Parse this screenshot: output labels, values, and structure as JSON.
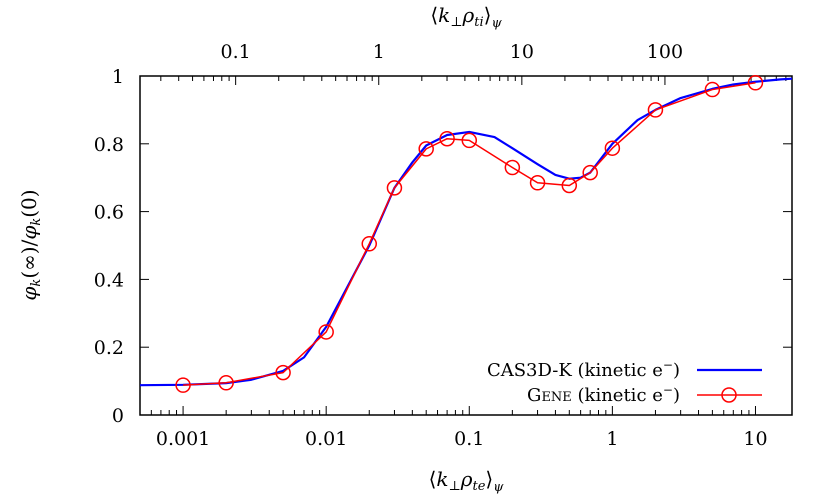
{
  "chart_data": {
    "type": "line",
    "xscale": "log",
    "xlim": [
      0.0005,
      18
    ],
    "ylim": [
      0,
      1
    ],
    "xticks": [
      0.001,
      0.01,
      0.1,
      1,
      10
    ],
    "xtick_labels": [
      "0.001",
      "0.01",
      "0.1",
      "1",
      "10"
    ],
    "yticks": [
      0,
      0.2,
      0.4,
      0.6,
      0.8,
      1
    ],
    "ytick_labels": [
      "0",
      "0.2",
      "0.4",
      "0.6",
      "0.8",
      "1"
    ],
    "x2_ticks": [
      0.1,
      1,
      10,
      100
    ],
    "x2_tick_labels": [
      "0.1",
      "1",
      "10",
      "100"
    ],
    "x2_scale_factor": 0.0233,
    "xlabel": "⟨k⊥ρte⟩ψ",
    "x2label": "⟨k⊥ρti⟩ψ",
    "ylabel": "φk(∞)/φk(0)",
    "legend_position": "bottom-right",
    "series": [
      {
        "name": "CAS3D-K (kinetic e⁻)",
        "color": "#0000ff",
        "marker": "none",
        "x": [
          0.0005,
          0.001,
          0.002,
          0.003,
          0.005,
          0.007,
          0.01,
          0.015,
          0.02,
          0.03,
          0.04,
          0.05,
          0.07,
          0.1,
          0.15,
          0.2,
          0.3,
          0.4,
          0.5,
          0.6,
          0.7,
          1,
          1.5,
          2,
          3,
          5,
          7,
          10,
          15,
          18
        ],
        "y": [
          0.088,
          0.089,
          0.094,
          0.104,
          0.13,
          0.17,
          0.26,
          0.4,
          0.5,
          0.67,
          0.745,
          0.795,
          0.826,
          0.835,
          0.82,
          0.787,
          0.74,
          0.708,
          0.697,
          0.7,
          0.715,
          0.8,
          0.87,
          0.9,
          0.935,
          0.962,
          0.975,
          0.983,
          0.99,
          0.992
        ]
      },
      {
        "name": "GENE (kinetic e⁻)",
        "color": "#ff0000",
        "marker": "circle",
        "x": [
          0.001,
          0.002,
          0.005,
          0.01,
          0.02,
          0.03,
          0.05,
          0.07,
          0.1,
          0.2,
          0.3,
          0.5,
          0.7,
          1,
          2,
          5,
          10
        ],
        "y": [
          0.088,
          0.095,
          0.125,
          0.245,
          0.505,
          0.67,
          0.785,
          0.815,
          0.81,
          0.73,
          0.685,
          0.677,
          0.715,
          0.787,
          0.9,
          0.96,
          0.98
        ]
      }
    ]
  },
  "legend": {
    "items": [
      {
        "prefix": "CAS3D-K (kinetic e",
        "sup": "−",
        "suffix": ")"
      },
      {
        "prefix": "G",
        "caps": "ENE",
        "mid": " (kinetic e",
        "sup": "−",
        "suffix": ")"
      }
    ]
  },
  "labels": {
    "x_main": "k",
    "x_sub1": "⊥",
    "x_rho": "ρ",
    "x_sub2": "te",
    "x_outer": "ψ",
    "x2_sub2": "ti",
    "y_phi": "φ",
    "y_k": "k",
    "y_inf": "(∞)/",
    "y_zero": "(0)"
  }
}
